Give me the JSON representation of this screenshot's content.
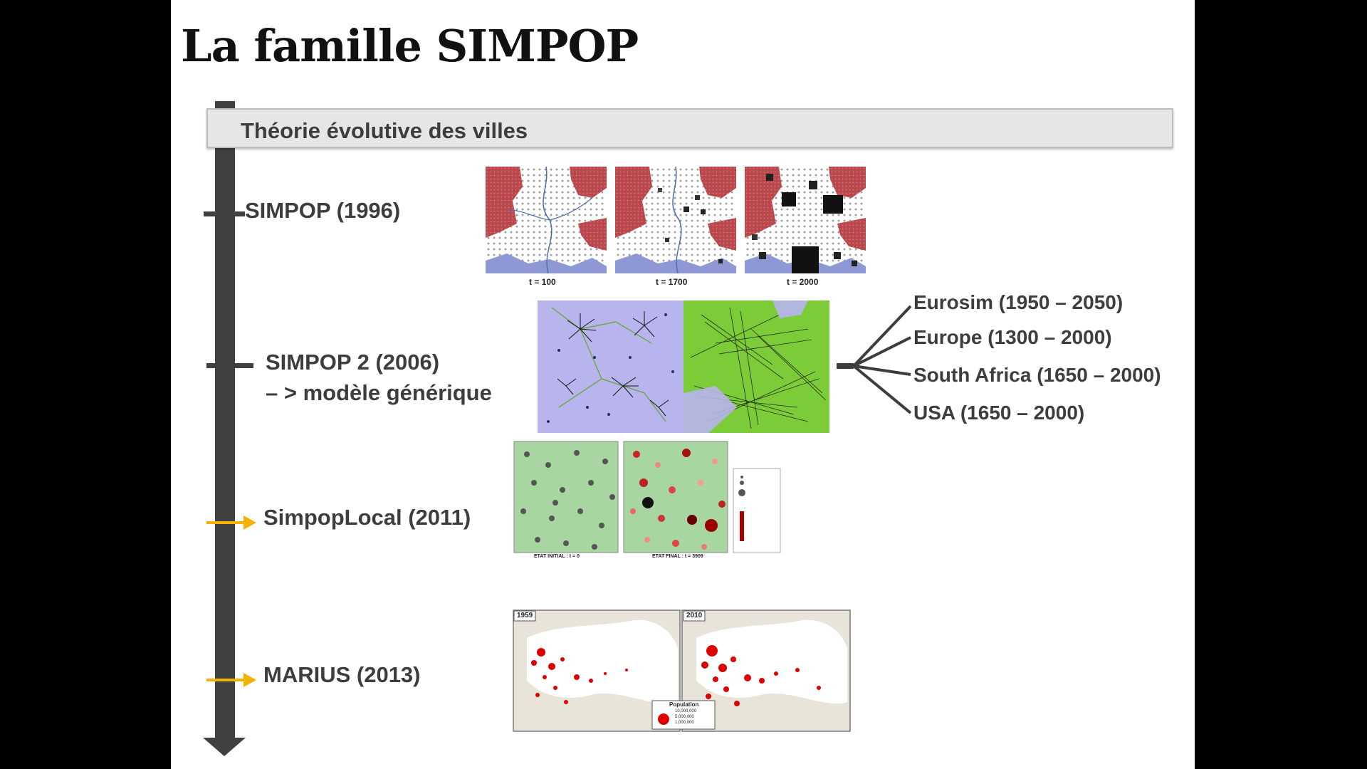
{
  "slide": {
    "title": "La famille SIMPOP",
    "band_label": "Théorie évolutive des villes"
  },
  "timeline": [
    {
      "label": "SIMPOP (1996)",
      "marker": "tick"
    },
    {
      "label": "SIMPOP 2 (2006)",
      "label2": "– > modèle générique",
      "marker": "tick"
    },
    {
      "label": "SimpopLocal  (2011)",
      "marker": "yellow-arrow"
    },
    {
      "label": "MARIUS  (2013)",
      "marker": "yellow-arrow"
    }
  ],
  "simpop_figure": {
    "captions": [
      "t = 100",
      "t = 1700",
      "t = 2000"
    ]
  },
  "simpop2_branches": [
    "Eurosim (1950 – 2050)",
    "Europe (1300 – 2000)",
    "South Africa (1650 – 2000)",
    "USA (1650 – 2000)"
  ],
  "simpoplocal_figure": {
    "caption_initial": "ETAT INITIAL :  t = 0",
    "caption_final": "ETAT FINAL :  t = 3909"
  },
  "marius_figure": {
    "year_left": "1959",
    "year_right": "2010",
    "legend_title": "Population",
    "legend_values": [
      "10,000,000",
      "5,000,000",
      "1,000,000"
    ]
  },
  "colors": {
    "axis": "#404040",
    "arrow": "#f2b400",
    "band": "#e6e6e6",
    "text": "#3d3d3d"
  }
}
